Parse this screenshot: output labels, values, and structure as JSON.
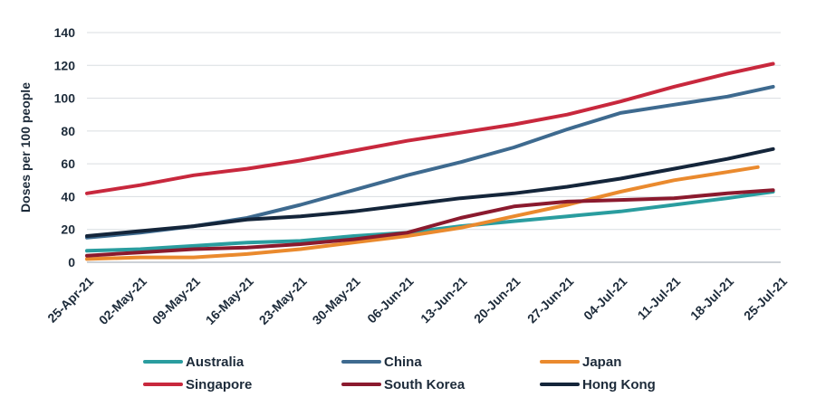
{
  "chart_data": {
    "type": "line",
    "title": "",
    "xlabel": "",
    "ylabel": "Doses per 100 people",
    "ylim": [
      0,
      140
    ],
    "yticks": [
      0,
      20,
      40,
      60,
      80,
      100,
      120,
      140
    ],
    "xlim": [
      "2021-04-25",
      "2021-07-25"
    ],
    "xtick_labels": [
      "25-Apr-21",
      "02-May-21",
      "09-May-21",
      "16-May-21",
      "23-May-21",
      "30-May-21",
      "06-Jun-21",
      "13-Jun-21",
      "20-Jun-21",
      "27-Jun-21",
      "04-Jul-21",
      "11-Jul-21",
      "18-Jul-21",
      "25-Jul-21"
    ],
    "grid": "horizontal",
    "legend_position": "bottom",
    "series": [
      {
        "name": "Australia",
        "color": "#2a9d9f",
        "x": [
          "2021-04-25",
          "2021-05-02",
          "2021-05-09",
          "2021-05-16",
          "2021-05-23",
          "2021-05-30",
          "2021-06-06",
          "2021-06-13",
          "2021-06-20",
          "2021-06-27",
          "2021-07-04",
          "2021-07-11",
          "2021-07-18",
          "2021-07-24"
        ],
        "values": [
          7,
          8,
          10,
          12,
          13,
          16,
          18,
          22,
          25,
          28,
          31,
          35,
          39,
          43
        ]
      },
      {
        "name": "China",
        "color": "#3e6a8f",
        "x": [
          "2021-04-25",
          "2021-05-02",
          "2021-05-09",
          "2021-05-16",
          "2021-05-23",
          "2021-05-30",
          "2021-06-06",
          "2021-06-13",
          "2021-06-20",
          "2021-06-27",
          "2021-07-04",
          "2021-07-11",
          "2021-07-18",
          "2021-07-24"
        ],
        "values": [
          15,
          18,
          22,
          27,
          35,
          44,
          53,
          61,
          70,
          81,
          91,
          96,
          101,
          107
        ]
      },
      {
        "name": "Japan",
        "color": "#ea8a2e",
        "x": [
          "2021-04-25",
          "2021-05-02",
          "2021-05-09",
          "2021-05-16",
          "2021-05-23",
          "2021-05-30",
          "2021-06-06",
          "2021-06-13",
          "2021-06-20",
          "2021-06-27",
          "2021-07-04",
          "2021-07-11",
          "2021-07-18",
          "2021-07-22"
        ],
        "values": [
          2,
          3,
          3,
          5,
          8,
          12,
          16,
          21,
          28,
          35,
          43,
          50,
          55,
          58
        ]
      },
      {
        "name": "Singapore",
        "color": "#c8283d",
        "x": [
          "2021-04-25",
          "2021-05-02",
          "2021-05-09",
          "2021-05-16",
          "2021-05-23",
          "2021-05-30",
          "2021-06-06",
          "2021-06-13",
          "2021-06-20",
          "2021-06-27",
          "2021-07-04",
          "2021-07-11",
          "2021-07-18",
          "2021-07-24"
        ],
        "values": [
          42,
          47,
          53,
          57,
          62,
          68,
          74,
          79,
          84,
          90,
          98,
          107,
          115,
          121
        ]
      },
      {
        "name": "South Korea",
        "color": "#8b1a2e",
        "x": [
          "2021-04-25",
          "2021-05-02",
          "2021-05-09",
          "2021-05-16",
          "2021-05-23",
          "2021-05-30",
          "2021-06-06",
          "2021-06-13",
          "2021-06-20",
          "2021-06-27",
          "2021-07-04",
          "2021-07-11",
          "2021-07-18",
          "2021-07-24"
        ],
        "values": [
          4,
          6,
          8,
          9,
          11,
          14,
          18,
          27,
          34,
          37,
          38,
          39,
          42,
          44
        ]
      },
      {
        "name": "Hong Kong",
        "color": "#14253a",
        "x": [
          "2021-04-25",
          "2021-05-02",
          "2021-05-09",
          "2021-05-16",
          "2021-05-23",
          "2021-05-30",
          "2021-06-06",
          "2021-06-13",
          "2021-06-20",
          "2021-06-27",
          "2021-07-04",
          "2021-07-11",
          "2021-07-18",
          "2021-07-24"
        ],
        "values": [
          16,
          19,
          22,
          26,
          28,
          31,
          35,
          39,
          42,
          46,
          51,
          57,
          63,
          69
        ]
      }
    ]
  }
}
